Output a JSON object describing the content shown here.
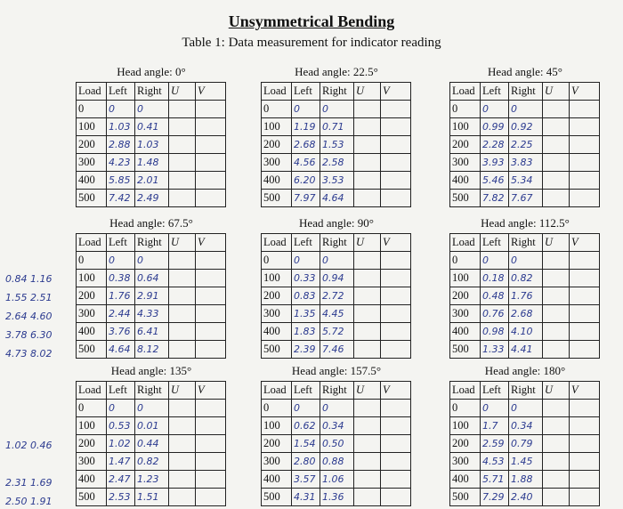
{
  "header": {
    "title": "Unsymmetrical Bending",
    "caption": "Table 1: Data measurement for indicator reading"
  },
  "columns": [
    "Load",
    "Left",
    "Right",
    "U",
    "V"
  ],
  "tables": [
    {
      "head": "Head angle: 0°",
      "rows": [
        [
          "0",
          "0",
          "0"
        ],
        [
          "100",
          "1.03",
          "0.41"
        ],
        [
          "200",
          "2.88",
          "1.03"
        ],
        [
          "300",
          "4.23",
          "1.48"
        ],
        [
          "400",
          "5.85",
          "2.01"
        ],
        [
          "500",
          "7.42",
          "2.49"
        ]
      ]
    },
    {
      "head": "Head angle: 22.5°",
      "rows": [
        [
          "0",
          "0",
          "0"
        ],
        [
          "100",
          "1.19",
          "0.71"
        ],
        [
          "200",
          "2.68",
          "1.53"
        ],
        [
          "300",
          "4.56",
          "2.58"
        ],
        [
          "400",
          "6.20",
          "3.53"
        ],
        [
          "500",
          "7.97",
          "4.64"
        ]
      ]
    },
    {
      "head": "Head angle: 45°",
      "rows": [
        [
          "0",
          "0",
          "0"
        ],
        [
          "100",
          "0.99",
          "0.92"
        ],
        [
          "200",
          "2.28",
          "2.25"
        ],
        [
          "300",
          "3.93",
          "3.83"
        ],
        [
          "400",
          "5.46",
          "5.34"
        ],
        [
          "500",
          "7.82",
          "7.67"
        ]
      ]
    },
    {
      "head": "Head angle: 67.5°",
      "rows": [
        [
          "0",
          "0",
          "0"
        ],
        [
          "100",
          "0.38",
          "0.64"
        ],
        [
          "200",
          "1.76",
          "2.91"
        ],
        [
          "300",
          "2.44",
          "4.33"
        ],
        [
          "400",
          "3.76",
          "6.41"
        ],
        [
          "500",
          "4.64",
          "8.12"
        ]
      ],
      "notes": [
        null,
        "0.84 1.16",
        "1.55 2.51",
        "2.64 4.60",
        "3.78 6.30",
        "4.73 8.02"
      ]
    },
    {
      "head": "Head angle: 90°",
      "rows": [
        [
          "0",
          "0",
          "0"
        ],
        [
          "100",
          "0.33",
          "0.94"
        ],
        [
          "200",
          "0.83",
          "2.72"
        ],
        [
          "300",
          "1.35",
          "4.45"
        ],
        [
          "400",
          "1.83",
          "5.72"
        ],
        [
          "500",
          "2.39",
          "7.46"
        ]
      ]
    },
    {
      "head": "Head angle: 112.5°",
      "rows": [
        [
          "0",
          "0",
          "0"
        ],
        [
          "100",
          "0.18",
          "0.82"
        ],
        [
          "200",
          "0.48",
          "1.76"
        ],
        [
          "300",
          "0.76",
          "2.68"
        ],
        [
          "400",
          "0.98",
          "4.10"
        ],
        [
          "500",
          "1.33",
          "4.41"
        ]
      ]
    },
    {
      "head": "Head angle: 135°",
      "rows": [
        [
          "0",
          "0",
          "0"
        ],
        [
          "100",
          "0.53",
          "0.01"
        ],
        [
          "200",
          "1.02",
          "0.44"
        ],
        [
          "300",
          "1.47",
          "0.82"
        ],
        [
          "400",
          "2.47",
          "1.23"
        ],
        [
          "500",
          "2.53",
          "1.51"
        ]
      ],
      "notes": [
        null,
        null,
        "1.02 0.46",
        null,
        "2.31 1.69",
        "2.50 1.91"
      ]
    },
    {
      "head": "Head angle: 157.5°",
      "rows": [
        [
          "0",
          "0",
          "0"
        ],
        [
          "100",
          "0.62",
          "0.34"
        ],
        [
          "200",
          "1.54",
          "0.50"
        ],
        [
          "300",
          "2.80",
          "0.88"
        ],
        [
          "400",
          "3.57",
          "1.06"
        ],
        [
          "500",
          "4.31",
          "1.36"
        ]
      ]
    },
    {
      "head": "Head angle: 180°",
      "rows": [
        [
          "0",
          "0",
          "0"
        ],
        [
          "100",
          "1.7",
          "0.34"
        ],
        [
          "200",
          "2.59",
          "0.79"
        ],
        [
          "300",
          "4.53",
          "1.45"
        ],
        [
          "400",
          "5.71",
          "1.88"
        ],
        [
          "500",
          "7.29",
          "2.40"
        ]
      ]
    }
  ]
}
